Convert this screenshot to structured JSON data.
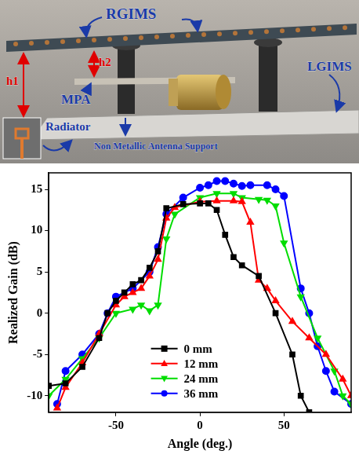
{
  "photo": {
    "labels": [
      "RGIMS",
      "h2",
      "h1",
      "MPA",
      "Radiator",
      "Non Metallic Antenna Support",
      "LGIMS"
    ]
  },
  "chart_data": {
    "type": "line",
    "x_label": "Angle (deg.)",
    "y_label": "Realized Gain (dB)",
    "xlim": [
      -90,
      90
    ],
    "xticks": [
      -50,
      0,
      50
    ],
    "ylim": [
      -12,
      17
    ],
    "yticks": [
      -10,
      -5,
      0,
      5,
      10,
      15
    ],
    "grid": false,
    "legend": "lower center",
    "series": [
      {
        "name": "0 mm",
        "color": "#000000",
        "marker": "square",
        "line_style": "solid",
        "x": [
          -90,
          -80,
          -70,
          -60,
          -55,
          -50,
          -45,
          -40,
          -35,
          -30,
          -25,
          -20,
          -10,
          0,
          5,
          10,
          15,
          20,
          25,
          35,
          45,
          55,
          60,
          65
        ],
        "values": [
          -8.8,
          -8.5,
          -6.5,
          -3,
          0,
          1.5,
          2.5,
          3.5,
          4,
          5.5,
          7.5,
          12.7,
          13.2,
          13.3,
          13.3,
          12.5,
          9.5,
          6.8,
          5.8,
          4.5,
          0,
          -5,
          -10,
          -12
        ]
      },
      {
        "name": "12 mm",
        "color": "#ff0000",
        "marker": "triangle",
        "line_style": "solid",
        "x": [
          -85,
          -80,
          -70,
          -60,
          -50,
          -45,
          -40,
          -35,
          -30,
          -25,
          -20,
          -15,
          0,
          10,
          20,
          25,
          30,
          35,
          40,
          45,
          55,
          65,
          75,
          85,
          90
        ],
        "values": [
          -11.5,
          -9,
          -6,
          -2.5,
          1,
          2,
          2.5,
          3,
          4.5,
          6.5,
          11.5,
          12.8,
          13.5,
          13.6,
          13.6,
          13.5,
          11,
          4,
          3,
          1.5,
          -1,
          -3,
          -5,
          -8,
          -10
        ]
      },
      {
        "name": "24 mm",
        "color": "#00dd00",
        "marker": "triangle_down",
        "line_style": "solid",
        "x": [
          -90,
          -80,
          -70,
          -60,
          -50,
          -40,
          -35,
          -30,
          -25,
          -20,
          -15,
          0,
          10,
          20,
          25,
          35,
          40,
          45,
          50,
          60,
          70,
          80,
          85,
          90
        ],
        "values": [
          -10,
          -8,
          -5.5,
          -3,
          0,
          0.5,
          1,
          0.3,
          1,
          9,
          12,
          14,
          14.5,
          14.5,
          14,
          13.8,
          13.7,
          13,
          8.5,
          2,
          -3,
          -7,
          -10,
          -11
        ]
      },
      {
        "name": "36 mm",
        "color": "#0000ff",
        "marker": "circle",
        "line_style": "solid",
        "x": [
          -85,
          -80,
          -70,
          -60,
          -55,
          -50,
          -40,
          -30,
          -25,
          -20,
          -10,
          0,
          5,
          10,
          15,
          20,
          25,
          30,
          40,
          45,
          50,
          60,
          65,
          70,
          75,
          80,
          90
        ],
        "values": [
          -11,
          -7,
          -5,
          -2.5,
          0,
          2,
          3,
          5,
          8,
          12,
          14,
          15.2,
          15.5,
          16,
          16,
          15.7,
          15.4,
          15.5,
          15.5,
          15,
          14.2,
          3,
          0,
          -4,
          -7,
          -9.5,
          -11
        ]
      }
    ]
  }
}
